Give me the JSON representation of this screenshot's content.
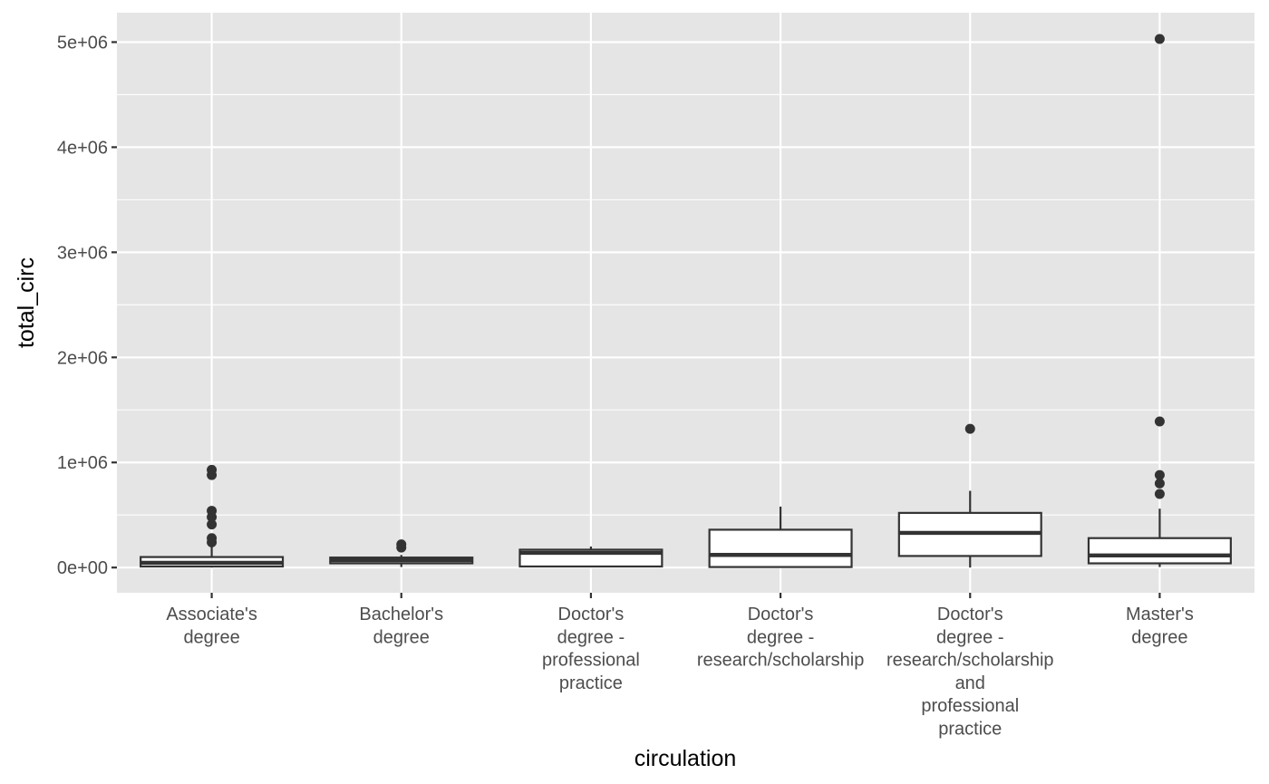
{
  "chart_data": {
    "type": "box",
    "xlabel": "circulation",
    "ylabel": "total_circ",
    "ylim": [
      -240000,
      5280000
    ],
    "y_ticks": [
      {
        "value": 0,
        "label": "0e+00"
      },
      {
        "value": 1000000,
        "label": "1e+06"
      },
      {
        "value": 2000000,
        "label": "2e+06"
      },
      {
        "value": 3000000,
        "label": "3e+06"
      },
      {
        "value": 4000000,
        "label": "4e+06"
      },
      {
        "value": 5000000,
        "label": "5e+06"
      }
    ],
    "y_minor_ticks": [
      500000,
      1500000,
      2500000,
      3500000,
      4500000
    ],
    "grid": true,
    "colors": {
      "panel_background": "#e5e5e5",
      "grid": "#ffffff",
      "box_fill": "#ffffff",
      "box_stroke": "#333333",
      "outlier": "#333333"
    },
    "categories": [
      {
        "label": "Associate's degree",
        "label_lines": [
          "Associate's",
          "degree"
        ],
        "whisker_low": 0,
        "q1": 10000,
        "median": 45000,
        "q3": 100000,
        "whisker_high": 230000,
        "outliers": [
          240000,
          280000,
          410000,
          480000,
          540000,
          880000,
          930000
        ]
      },
      {
        "label": "Bachelor's degree",
        "label_lines": [
          "Bachelor's",
          "degree"
        ],
        "whisker_low": 5000,
        "q1": 40000,
        "median": 70000,
        "q3": 95000,
        "whisker_high": 120000,
        "outliers": [
          190000,
          220000
        ]
      },
      {
        "label": "Doctor's degree - professional practice",
        "label_lines": [
          "Doctor's",
          "degree -",
          "professional",
          "practice"
        ],
        "whisker_low": 5000,
        "q1": 10000,
        "median": 140000,
        "q3": 170000,
        "whisker_high": 200000,
        "outliers": []
      },
      {
        "label": "Doctor's degree - research/scholarship",
        "label_lines": [
          "Doctor's",
          "degree -",
          "research/scholarship"
        ],
        "whisker_low": 0,
        "q1": 5000,
        "median": 120000,
        "q3": 360000,
        "whisker_high": 580000,
        "outliers": []
      },
      {
        "label": "Doctor's degree - research/scholarship and professional practice",
        "label_lines": [
          "Doctor's",
          "degree -",
          "research/scholarship",
          "and",
          "professional",
          "practice"
        ],
        "whisker_low": 0,
        "q1": 110000,
        "median": 330000,
        "q3": 520000,
        "whisker_high": 730000,
        "outliers": [
          1320000
        ]
      },
      {
        "label": "Master's degree",
        "label_lines": [
          "Master's",
          "degree"
        ],
        "whisker_low": 5000,
        "q1": 40000,
        "median": 115000,
        "q3": 280000,
        "whisker_high": 560000,
        "outliers": [
          700000,
          800000,
          880000,
          1390000,
          5030000
        ]
      }
    ]
  }
}
